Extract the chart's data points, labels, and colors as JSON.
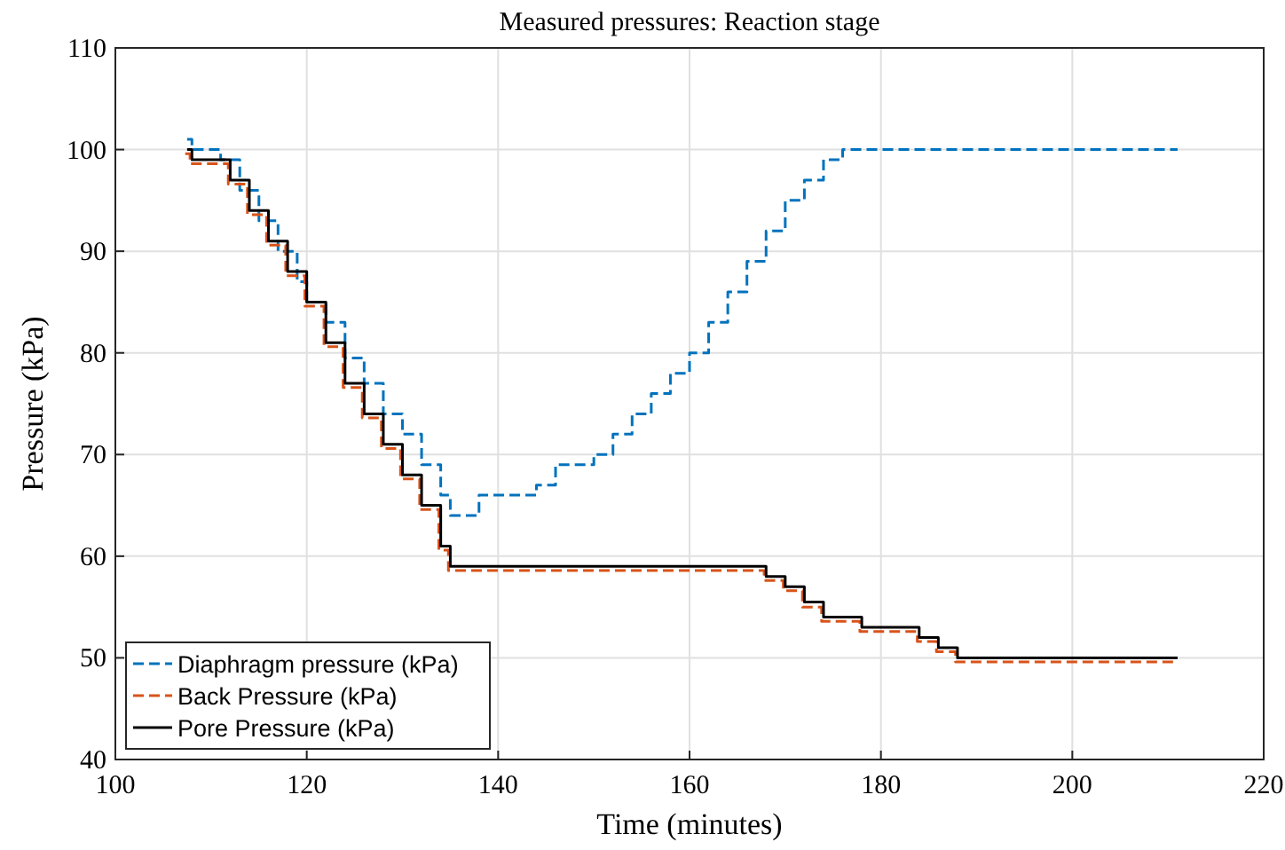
{
  "chart_data": {
    "type": "step",
    "title": "Measured pressures: Reaction stage",
    "xlabel": "Time (minutes)",
    "ylabel": "Pressure (kPa)",
    "xlim": [
      100,
      220
    ],
    "xticks": [
      100,
      120,
      140,
      160,
      180,
      200,
      220
    ],
    "ylim": [
      40,
      110
    ],
    "yticks": [
      40,
      50,
      60,
      70,
      80,
      90,
      100,
      110
    ],
    "grid": true,
    "legend": "bottom left",
    "series": [
      {
        "name": "Diaphragm pressure (kPa)",
        "color": "#0072bd",
        "line_style": "dashed",
        "x": [
          107.5,
          108,
          110,
          111,
          113,
          115,
          117,
          119,
          120,
          122,
          124,
          126,
          128,
          130,
          132,
          134,
          135,
          137,
          138,
          142,
          144,
          146,
          148,
          150,
          152,
          154,
          156,
          158,
          160,
          162,
          164,
          166,
          168,
          170,
          172,
          174,
          176,
          211
        ],
        "values": [
          101,
          100,
          100,
          99,
          96,
          93,
          90,
          87,
          85,
          83,
          79.5,
          77,
          74,
          72,
          69,
          66,
          64,
          64,
          66,
          66,
          67,
          69,
          69,
          70,
          72,
          74,
          76,
          78,
          80,
          83,
          86,
          89,
          92,
          95,
          97,
          99,
          100,
          100
        ]
      },
      {
        "name": "Back Pressure (kPa)",
        "color": "#d95319",
        "line_style": "dashed",
        "x": [
          107.3,
          107.8,
          109.8,
          111.8,
          113.8,
          115.8,
          117.8,
          119.8,
          121.8,
          123.8,
          125.8,
          127.8,
          129.8,
          131.8,
          133.8,
          134.8,
          140,
          150,
          160,
          166,
          167.8,
          169.8,
          171.8,
          173.8,
          176,
          177.8,
          182,
          183.8,
          185.8,
          187.8,
          200,
          211
        ],
        "values": [
          99.6,
          98.6,
          98.6,
          96.6,
          93.6,
          90.6,
          87.6,
          84.6,
          80.6,
          76.6,
          73.6,
          70.6,
          67.6,
          64.6,
          60.6,
          58.6,
          58.6,
          58.6,
          58.6,
          58.6,
          57.6,
          56.6,
          55,
          53.6,
          53.6,
          52.6,
          52.6,
          51.6,
          50.6,
          49.6,
          49.6,
          49.6
        ]
      },
      {
        "name": "Pore Pressure (kPa)",
        "color": "#000000",
        "line_style": "solid",
        "x": [
          107.5,
          108,
          110,
          112,
          114,
          116,
          118,
          120,
          122,
          124,
          126,
          128,
          130,
          132,
          134,
          135,
          140,
          150,
          160,
          166,
          168,
          170,
          172,
          174,
          176,
          178,
          182,
          184,
          186,
          188,
          200,
          211
        ],
        "values": [
          100,
          99,
          99,
          97,
          94,
          91,
          88,
          85,
          81,
          77,
          74,
          71,
          68,
          65,
          61,
          59,
          59,
          59,
          59,
          59,
          58,
          57,
          55.5,
          54,
          54,
          53,
          53,
          52,
          51,
          50,
          50,
          50
        ]
      }
    ]
  }
}
